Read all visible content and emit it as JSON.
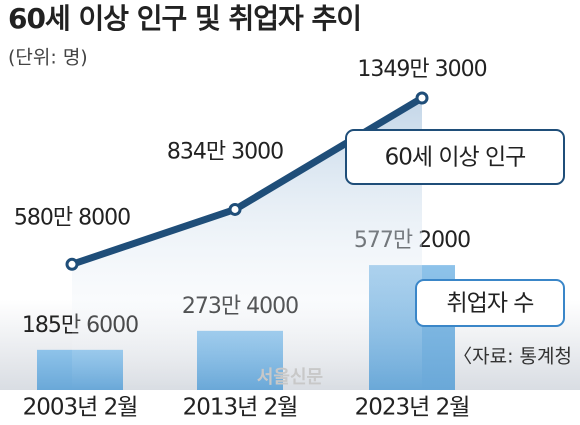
{
  "chart_data": {
    "type": "bar-line",
    "title": "60세 이상 인구 및 취업자 추이",
    "subtitle": "(단위: 명)",
    "categories": [
      "2003년 2월",
      "2013년 2월",
      "2023년 2월"
    ],
    "series": [
      {
        "name": "60세 이상 인구",
        "type": "line",
        "color": "#1f4e79",
        "values": [
          5808000,
          8343000,
          13493000
        ],
        "value_labels": [
          "580만 8000",
          "834만 3000",
          "1349만 3000"
        ]
      },
      {
        "name": "취업자 수",
        "type": "bar",
        "color": "#7db7e3",
        "values": [
          1856000,
          2734000,
          5772000
        ],
        "value_labels": [
          "185만 6000",
          "273만 4000",
          "577만 2000"
        ]
      }
    ],
    "source": "〈자료: 통계청",
    "watermark": "서울신문"
  }
}
